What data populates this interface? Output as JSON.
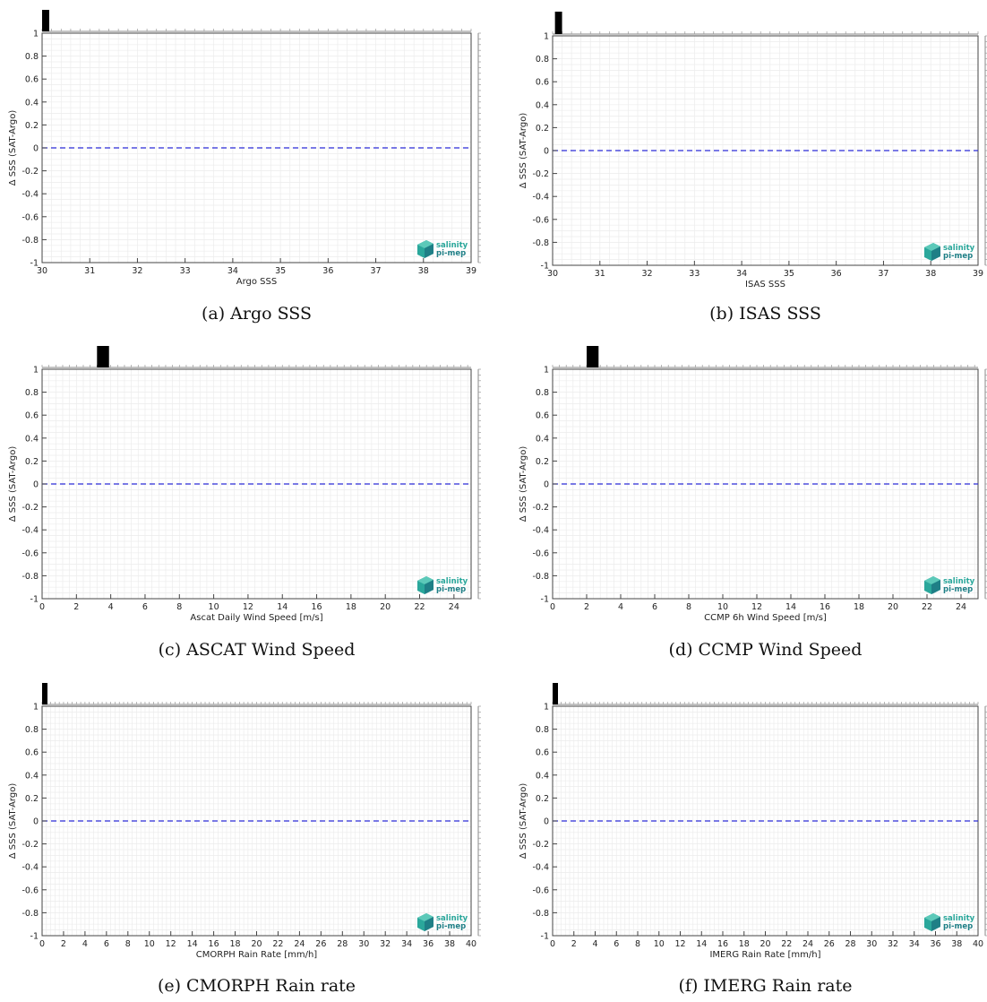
{
  "colors": {
    "zero_line": "#2b2bd6",
    "hist_bar": "#000000",
    "grid_minor": "#ececec",
    "axis": "#444444",
    "logo_teal": "#2aa79b",
    "logo_dark": "#1f7f86"
  },
  "logo": {
    "line1": "salinity",
    "line2": "pi-mep",
    "icon": "salinity-pimep-logo-icon"
  },
  "chart_data": [
    {
      "type": "line",
      "caption": "(a) Argo SSS",
      "xlabel": "Argo SSS",
      "ylabel": "Δ SSS (SAT-Argo)",
      "xlim": [
        30,
        39
      ],
      "ylim": [
        -1,
        1
      ],
      "xticks": [
        30,
        31,
        32,
        33,
        34,
        35,
        36,
        37,
        38,
        39
      ],
      "yticks": [
        -1,
        -0.8,
        -0.6,
        -0.4,
        -0.2,
        0,
        0.2,
        0.4,
        0.6,
        0.8,
        1
      ],
      "grid": true,
      "zero_line": {
        "y": 0,
        "style": "dashed"
      },
      "histogram_bars": [
        {
          "x0": 30.0,
          "x1": 30.15
        }
      ]
    },
    {
      "type": "line",
      "caption": "(b) ISAS SSS",
      "xlabel": "ISAS SSS",
      "ylabel": "Δ SSS (SAT-Argo)",
      "xlim": [
        30,
        39
      ],
      "ylim": [
        -1,
        1
      ],
      "xticks": [
        30,
        31,
        32,
        33,
        34,
        35,
        36,
        37,
        38,
        39
      ],
      "yticks": [
        -1,
        -0.8,
        -0.6,
        -0.4,
        -0.2,
        0,
        0.2,
        0.4,
        0.6,
        0.8,
        1
      ],
      "grid": true,
      "zero_line": {
        "y": 0,
        "style": "dashed"
      },
      "histogram_bars": [
        {
          "x0": 30.05,
          "x1": 30.2
        }
      ]
    },
    {
      "type": "line",
      "caption": "(c) ASCAT Wind Speed",
      "xlabel": "Ascat Daily Wind Speed [m/s]",
      "ylabel": "Δ SSS (SAT-Argo)",
      "xlim": [
        0,
        25
      ],
      "ylim": [
        -1,
        1
      ],
      "xticks": [
        0,
        2,
        4,
        6,
        8,
        10,
        12,
        14,
        16,
        18,
        20,
        22,
        24
      ],
      "yticks": [
        -1,
        -0.8,
        -0.6,
        -0.4,
        -0.2,
        0,
        0.2,
        0.4,
        0.6,
        0.8,
        1
      ],
      "grid": true,
      "zero_line": {
        "y": 0,
        "style": "dashed"
      },
      "histogram_bars": [
        {
          "x0": 3.2,
          "x1": 3.9
        }
      ]
    },
    {
      "type": "line",
      "caption": "(d) CCMP Wind Speed",
      "xlabel": "CCMP 6h Wind Speed [m/s]",
      "ylabel": "Δ SSS (SAT-Argo)",
      "xlim": [
        0,
        25
      ],
      "ylim": [
        -1,
        1
      ],
      "xticks": [
        0,
        2,
        4,
        6,
        8,
        10,
        12,
        14,
        16,
        18,
        20,
        22,
        24
      ],
      "yticks": [
        -1,
        -0.8,
        -0.6,
        -0.4,
        -0.2,
        0,
        0.2,
        0.4,
        0.6,
        0.8,
        1
      ],
      "grid": true,
      "zero_line": {
        "y": 0,
        "style": "dashed"
      },
      "histogram_bars": [
        {
          "x0": 2.0,
          "x1": 2.7
        }
      ]
    },
    {
      "type": "line",
      "caption": "(e) CMORPH Rain rate",
      "xlabel": "CMORPH Rain Rate [mm/h]",
      "ylabel": "Δ SSS (SAT-Argo)",
      "xlim": [
        0,
        40
      ],
      "ylim": [
        -1,
        1
      ],
      "xticks": [
        0,
        2,
        4,
        6,
        8,
        10,
        12,
        14,
        16,
        18,
        20,
        22,
        24,
        26,
        28,
        30,
        32,
        34,
        36,
        38,
        40
      ],
      "yticks": [
        -1,
        -0.8,
        -0.6,
        -0.4,
        -0.2,
        0,
        0.2,
        0.4,
        0.6,
        0.8,
        1
      ],
      "grid": true,
      "zero_line": {
        "y": 0,
        "style": "dashed"
      },
      "histogram_bars": [
        {
          "x0": 0.0,
          "x1": 0.3
        }
      ]
    },
    {
      "type": "line",
      "caption": "(f) IMERG Rain rate",
      "xlabel": "IMERG Rain Rate [mm/h]",
      "ylabel": "Δ SSS (SAT-Argo)",
      "xlim": [
        0,
        40
      ],
      "ylim": [
        -1,
        1
      ],
      "xticks": [
        0,
        2,
        4,
        6,
        8,
        10,
        12,
        14,
        16,
        18,
        20,
        22,
        24,
        26,
        28,
        30,
        32,
        34,
        36,
        38,
        40
      ],
      "yticks": [
        -1,
        -0.8,
        -0.6,
        -0.4,
        -0.2,
        0,
        0.2,
        0.4,
        0.6,
        0.8,
        1
      ],
      "grid": true,
      "zero_line": {
        "y": 0,
        "style": "dashed"
      },
      "histogram_bars": [
        {
          "x0": 0.0,
          "x1": 0.3
        }
      ]
    }
  ]
}
